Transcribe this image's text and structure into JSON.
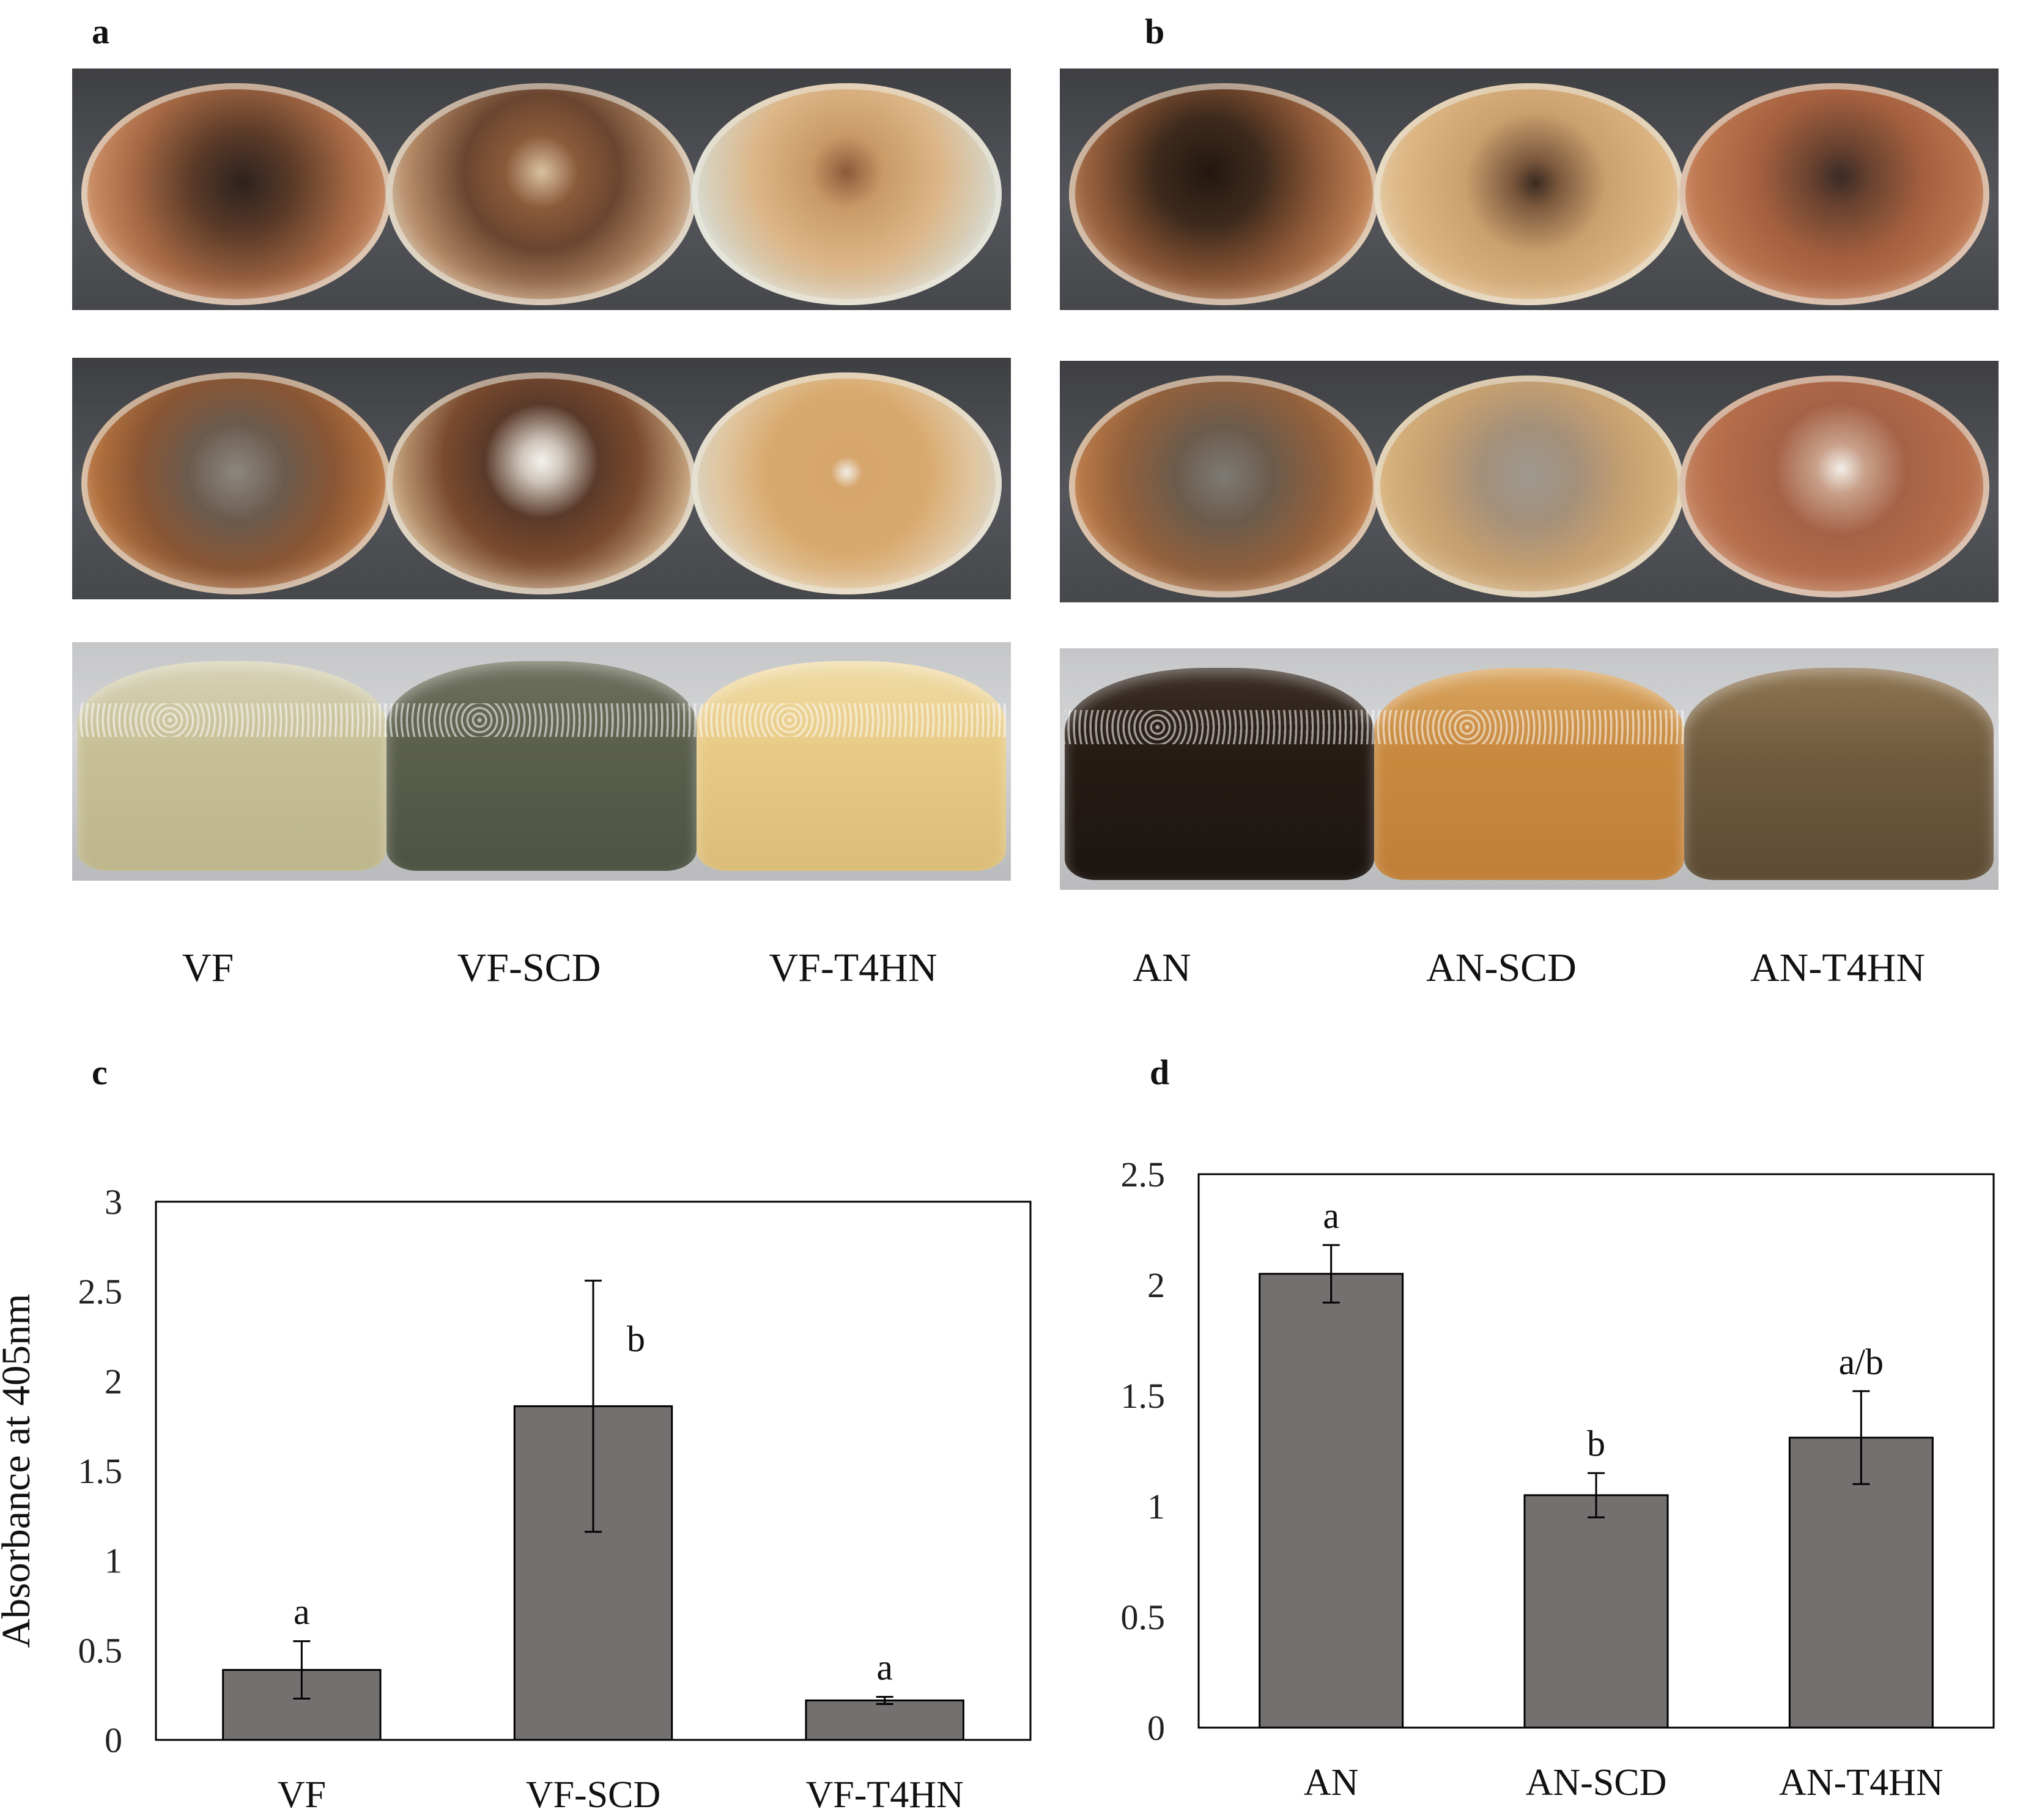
{
  "panels": {
    "a": "a",
    "b": "b",
    "c": "c",
    "d": "d"
  },
  "photo_labels_left": [
    "VF",
    "VF-SCD",
    "VF-T4HN"
  ],
  "photo_labels_right": [
    "AN",
    "AN-SCD",
    "AN-T4HN"
  ],
  "chart_data": [
    {
      "panel": "c",
      "type": "bar",
      "title": "",
      "xlabel": "",
      "ylabel": "Absorbance at 405nm",
      "ylim": [
        0,
        3
      ],
      "yticks": [
        "0",
        "0.5",
        "1",
        "1.5",
        "2",
        "2.5",
        "3"
      ],
      "categories": [
        "VF",
        "VF-SCD",
        "VF-T4HN"
      ],
      "values": [
        0.39,
        1.86,
        0.22
      ],
      "errors": [
        0.16,
        0.7,
        0.02
      ],
      "significance": [
        "a",
        "b",
        "a"
      ],
      "bar_color": "#757070"
    },
    {
      "panel": "d",
      "type": "bar",
      "title": "",
      "xlabel": "",
      "ylabel": "",
      "ylim": [
        0,
        2.5
      ],
      "yticks": [
        "0",
        "0.5",
        "1",
        "1.5",
        "2",
        "2.5"
      ],
      "categories": [
        "AN",
        "AN-SCD",
        "AN-T4HN"
      ],
      "values": [
        2.05,
        1.05,
        1.31
      ],
      "errors": [
        0.13,
        0.1,
        0.21
      ],
      "significance": [
        "a",
        "b",
        "a/b"
      ],
      "bar_color": "#757070"
    }
  ]
}
